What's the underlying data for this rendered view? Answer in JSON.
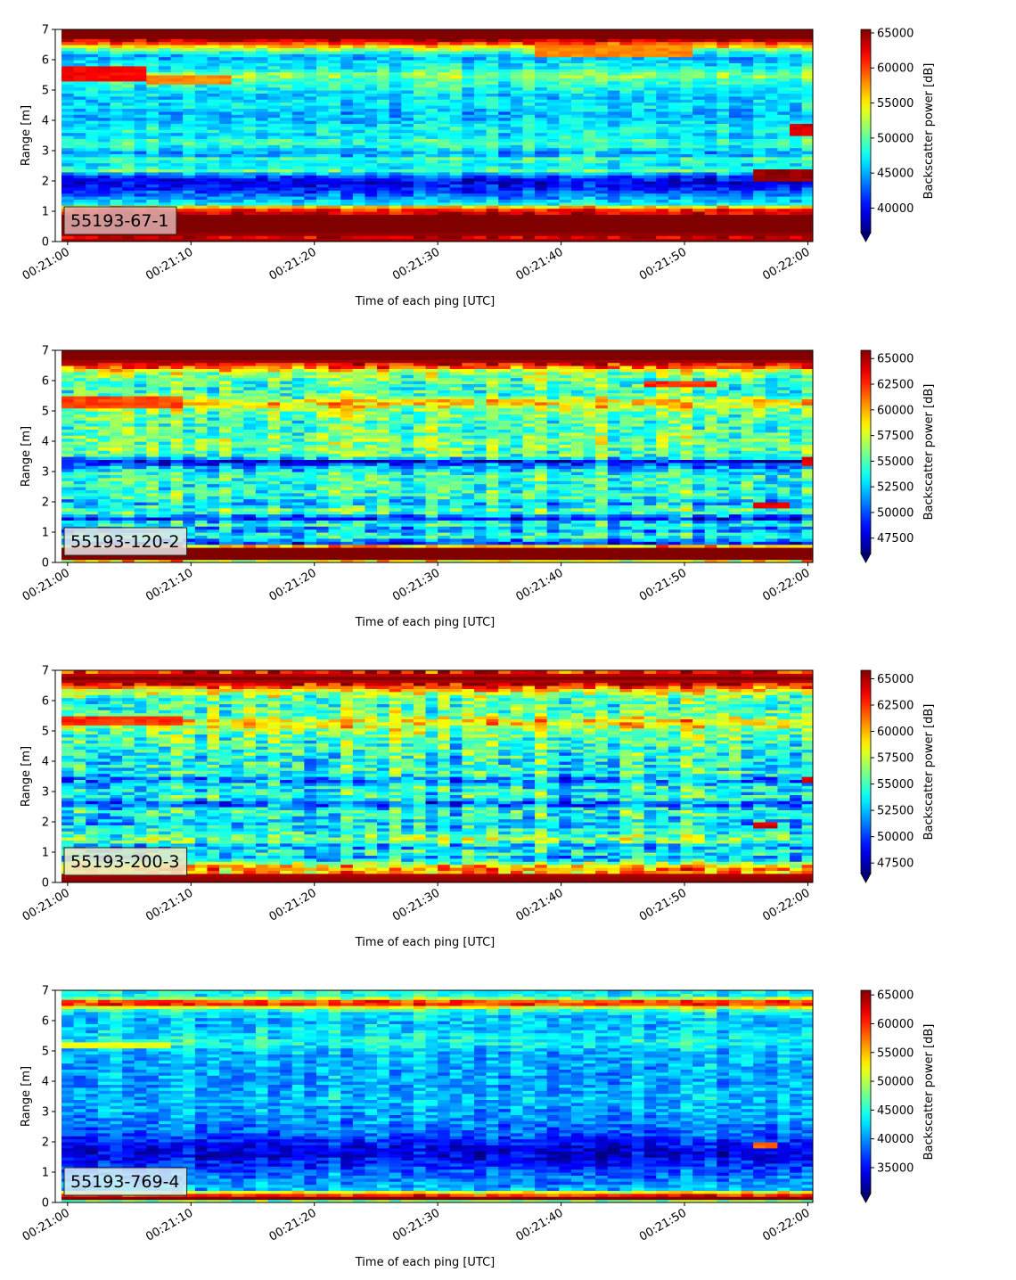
{
  "figure": {
    "colormap": "jet",
    "colormap_stops": [
      "#00007f",
      "#0000ff",
      "#00ffff",
      "#ffff00",
      "#ff0000",
      "#7f0000"
    ]
  },
  "chart_data": [
    {
      "type": "heatmap",
      "label": "55193-67-1",
      "label_box_color": "#e0b0b0",
      "xlabel": "Time of each ping [UTC]",
      "ylabel": "Range [m]",
      "colorbar_label": "Backscatter power [dB]",
      "xticks": [
        "00:21:00",
        "00:21:10",
        "00:21:20",
        "00:21:30",
        "00:21:40",
        "00:21:50",
        "00:22:00"
      ],
      "xlim_seconds": [
        -1,
        60.4
      ],
      "ylim": [
        0,
        7
      ],
      "yticks": [
        0,
        1,
        2,
        3,
        4,
        5,
        6,
        7
      ],
      "clim": [
        36500,
        65500
      ],
      "cticks": [
        40000,
        45000,
        50000,
        55000,
        60000,
        65000
      ],
      "colorbar_extend": "min",
      "pings": 62,
      "range_bins": 70,
      "profile": [
        [
          0.0,
          65500
        ],
        [
          0.12,
          63000
        ],
        [
          0.3,
          65500
        ],
        [
          0.85,
          65500
        ],
        [
          1.0,
          62000
        ],
        [
          1.12,
          60000
        ],
        [
          1.22,
          48000
        ],
        [
          1.35,
          46000
        ],
        [
          1.5,
          44000
        ],
        [
          1.75,
          41000
        ],
        [
          2.0,
          39500
        ],
        [
          2.2,
          43000
        ],
        [
          2.35,
          50000
        ],
        [
          2.5,
          47000
        ],
        [
          2.75,
          49000
        ],
        [
          2.9,
          44000
        ],
        [
          3.0,
          46000
        ],
        [
          3.3,
          49500
        ],
        [
          3.5,
          46500
        ],
        [
          3.7,
          48000
        ],
        [
          4.0,
          46000
        ],
        [
          4.3,
          45500
        ],
        [
          4.5,
          47000
        ],
        [
          4.8,
          46000
        ],
        [
          5.1,
          48000
        ],
        [
          5.3,
          49000
        ],
        [
          5.5,
          52000
        ],
        [
          5.7,
          48000
        ],
        [
          5.9,
          47000
        ],
        [
          6.1,
          45000
        ],
        [
          6.3,
          50000
        ],
        [
          6.45,
          56000
        ],
        [
          6.6,
          62000
        ],
        [
          6.75,
          65500
        ],
        [
          7.0,
          65500
        ]
      ],
      "features": [
        {
          "x0": 0,
          "x1": 6,
          "y0": 5.35,
          "y1": 5.75,
          "value": 62000
        },
        {
          "x0": 6,
          "x1": 13,
          "y0": 5.25,
          "y1": 5.55,
          "value": 58000
        },
        {
          "x0": 56,
          "x1": 60,
          "y0": 2.0,
          "y1": 2.4,
          "value": 65000
        },
        {
          "x0": 59,
          "x1": 60,
          "y0": 3.5,
          "y1": 3.9,
          "value": 63000
        },
        {
          "x0": 38,
          "x1": 51,
          "y0": 6.15,
          "y1": 6.45,
          "value": 58000
        }
      ],
      "noise": 3200,
      "seed": 11
    },
    {
      "type": "heatmap",
      "label": "55193-120-2",
      "label_box_color": "#e6e6e6",
      "xlabel": "Time of each ping [UTC]",
      "ylabel": "Range [m]",
      "colorbar_label": "Backscatter power [dB]",
      "xticks": [
        "00:21:00",
        "00:21:10",
        "00:21:20",
        "00:21:30",
        "00:21:40",
        "00:21:50",
        "00:22:00"
      ],
      "xlim_seconds": [
        -1,
        60.4
      ],
      "ylim": [
        0,
        7
      ],
      "yticks": [
        0,
        1,
        2,
        3,
        4,
        5,
        6,
        7
      ],
      "clim": [
        46000,
        65800
      ],
      "cticks": [
        47500,
        50000,
        52500,
        55000,
        57500,
        60000,
        62500,
        65000
      ],
      "colorbar_extend": "min",
      "pings": 62,
      "range_bins": 70,
      "profile": [
        [
          0.0,
          52000
        ],
        [
          0.1,
          65800
        ],
        [
          0.45,
          65800
        ],
        [
          0.55,
          60000
        ],
        [
          0.65,
          50000
        ],
        [
          0.9,
          55000
        ],
        [
          1.1,
          51000
        ],
        [
          1.3,
          55000
        ],
        [
          1.45,
          49000
        ],
        [
          1.7,
          56000
        ],
        [
          2.0,
          52000
        ],
        [
          2.2,
          55000
        ],
        [
          2.5,
          54000
        ],
        [
          2.8,
          55000
        ],
        [
          3.1,
          53000
        ],
        [
          3.35,
          48000
        ],
        [
          3.5,
          55000
        ],
        [
          4.0,
          56000
        ],
        [
          4.5,
          55000
        ],
        [
          5.0,
          56000
        ],
        [
          5.3,
          60000
        ],
        [
          5.5,
          55000
        ],
        [
          6.0,
          55000
        ],
        [
          6.3,
          57000
        ],
        [
          6.5,
          63000
        ],
        [
          6.7,
          65800
        ],
        [
          7.0,
          65800
        ]
      ],
      "features": [
        {
          "x0": 0,
          "x1": 9,
          "y0": 5.15,
          "y1": 5.45,
          "value": 62000
        },
        {
          "x0": 47,
          "x1": 53,
          "y0": 5.8,
          "y1": 6.0,
          "value": 62500
        },
        {
          "x0": 56,
          "x1": 59,
          "y0": 1.85,
          "y1": 2.05,
          "value": 64000
        },
        {
          "x0": 60,
          "x1": 61,
          "y0": 3.25,
          "y1": 3.45,
          "value": 64000
        }
      ],
      "noise": 3600,
      "seed": 23
    },
    {
      "type": "heatmap",
      "label": "55193-200-3",
      "label_box_color": "#eee8c8",
      "xlabel": "Time of each ping [UTC]",
      "ylabel": "Range [m]",
      "colorbar_label": "Backscatter power [dB]",
      "xticks": [
        "00:21:00",
        "00:21:10",
        "00:21:20",
        "00:21:30",
        "00:21:40",
        "00:21:50",
        "00:22:00"
      ],
      "xlim_seconds": [
        -1,
        60.4
      ],
      "ylim": [
        0,
        7
      ],
      "yticks": [
        0,
        1,
        2,
        3,
        4,
        5,
        6,
        7
      ],
      "clim": [
        46500,
        65800
      ],
      "cticks": [
        47500,
        50000,
        52500,
        55000,
        57500,
        60000,
        62500,
        65000
      ],
      "colorbar_extend": "min",
      "pings": 62,
      "range_bins": 70,
      "profile": [
        [
          0.0,
          65800
        ],
        [
          0.25,
          65000
        ],
        [
          0.35,
          60000
        ],
        [
          0.5,
          61000
        ],
        [
          0.65,
          57000
        ],
        [
          0.8,
          52000
        ],
        [
          1.0,
          55000
        ],
        [
          1.2,
          52000
        ],
        [
          1.4,
          57000
        ],
        [
          1.6,
          55000
        ],
        [
          1.8,
          54000
        ],
        [
          2.0,
          53000
        ],
        [
          2.4,
          55000
        ],
        [
          2.6,
          50000
        ],
        [
          2.8,
          54500
        ],
        [
          3.2,
          54000
        ],
        [
          3.4,
          51000
        ],
        [
          3.6,
          55000
        ],
        [
          4.0,
          54000
        ],
        [
          4.5,
          55000
        ],
        [
          5.0,
          56000
        ],
        [
          5.3,
          60000
        ],
        [
          5.5,
          56000
        ],
        [
          6.0,
          55000
        ],
        [
          6.3,
          58000
        ],
        [
          6.55,
          64000
        ],
        [
          6.75,
          65800
        ],
        [
          7.0,
          63000
        ]
      ],
      "features": [
        {
          "x0": 0,
          "x1": 9,
          "y0": 5.2,
          "y1": 5.45,
          "value": 62500
        },
        {
          "x0": 56,
          "x1": 58,
          "y0": 1.85,
          "y1": 2.0,
          "value": 64000
        },
        {
          "x0": 60,
          "x1": 61,
          "y0": 3.3,
          "y1": 3.45,
          "value": 64000
        }
      ],
      "noise": 3800,
      "seed": 37
    },
    {
      "type": "heatmap",
      "label": "55193-769-4",
      "label_box_color": "#d8ecf4",
      "xlabel": "Time of each ping [UTC]",
      "ylabel": "Range [m]",
      "colorbar_label": "Backscatter power [dB]",
      "xticks": [
        "00:21:00",
        "00:21:10",
        "00:21:20",
        "00:21:30",
        "00:21:40",
        "00:21:50",
        "00:22:00"
      ],
      "xlim_seconds": [
        -1,
        60.4
      ],
      "ylim": [
        0,
        7
      ],
      "yticks": [
        0,
        1,
        2,
        3,
        4,
        5,
        6,
        7
      ],
      "clim": [
        30500,
        65800
      ],
      "cticks": [
        35000,
        40000,
        45000,
        50000,
        55000,
        60000,
        65000
      ],
      "colorbar_extend": "min",
      "pings": 62,
      "range_bins": 70,
      "profile": [
        [
          0.0,
          40000
        ],
        [
          0.15,
          65800
        ],
        [
          0.3,
          58000
        ],
        [
          0.45,
          42000
        ],
        [
          0.7,
          40000
        ],
        [
          1.0,
          39000
        ],
        [
          1.3,
          36000
        ],
        [
          1.6,
          34000
        ],
        [
          1.9,
          35000
        ],
        [
          2.2,
          38000
        ],
        [
          2.6,
          40000
        ],
        [
          3.0,
          41000
        ],
        [
          3.5,
          42000
        ],
        [
          4.0,
          41000
        ],
        [
          4.5,
          41500
        ],
        [
          5.0,
          42000
        ],
        [
          5.3,
          45000
        ],
        [
          5.6,
          43000
        ],
        [
          6.0,
          42000
        ],
        [
          6.3,
          44000
        ],
        [
          6.45,
          52000
        ],
        [
          6.6,
          64000
        ],
        [
          6.8,
          45000
        ],
        [
          7.0,
          44000
        ]
      ],
      "features": [
        {
          "x0": 0,
          "x1": 8,
          "y0": 5.15,
          "y1": 5.35,
          "value": 52000
        },
        {
          "x0": 56,
          "x1": 58,
          "y0": 1.85,
          "y1": 2.0,
          "value": 58000
        }
      ],
      "noise": 4200,
      "seed": 53
    }
  ]
}
